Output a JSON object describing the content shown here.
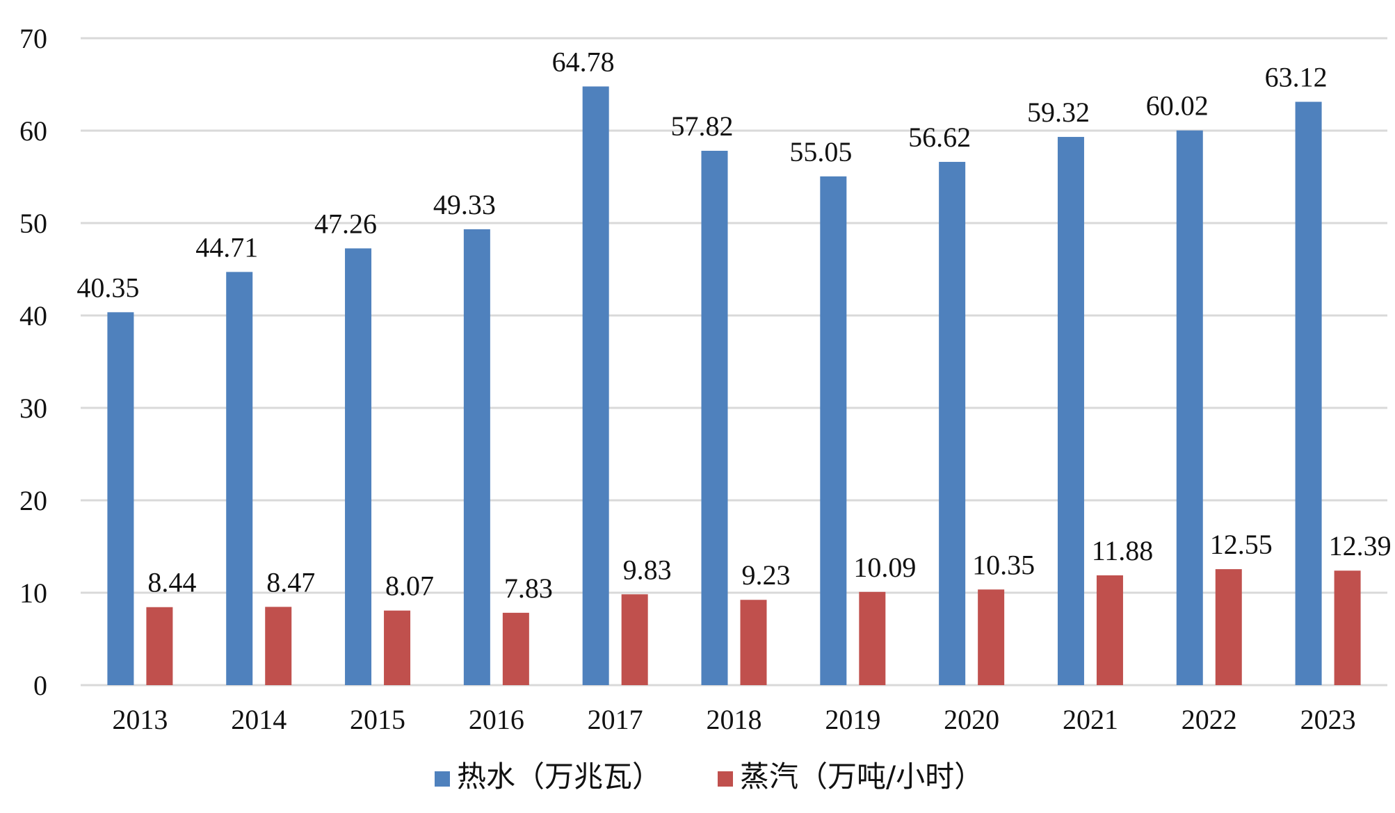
{
  "chart_data": {
    "type": "bar",
    "categories": [
      "2013",
      "2014",
      "2015",
      "2016",
      "2017",
      "2018",
      "2019",
      "2020",
      "2021",
      "2022",
      "2023"
    ],
    "series": [
      {
        "name": "热水（万兆瓦）",
        "color": "#4f81bd",
        "values": [
          40.35,
          44.71,
          47.26,
          49.33,
          64.78,
          57.82,
          55.05,
          56.62,
          59.32,
          60.02,
          63.12
        ]
      },
      {
        "name": "蒸汽（万吨/小时）",
        "color": "#c0504d",
        "values": [
          8.44,
          8.47,
          8.07,
          7.83,
          9.83,
          9.23,
          10.09,
          10.35,
          11.88,
          12.55,
          12.39
        ]
      }
    ],
    "ylim": [
      0,
      70
    ],
    "yticks": [
      0,
      10,
      20,
      30,
      40,
      50,
      60,
      70
    ],
    "grid": true,
    "legend": "bottom-center",
    "data_labels": true
  }
}
